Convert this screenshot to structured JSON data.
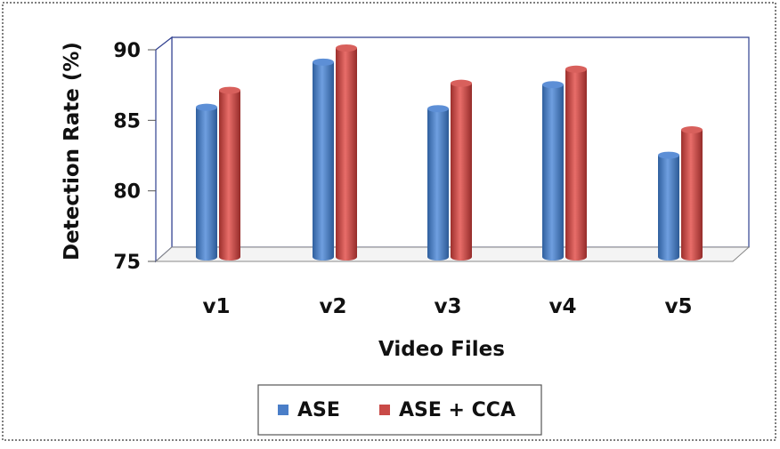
{
  "chart_data": {
    "type": "bar",
    "title": "",
    "xlabel": "Video Files",
    "ylabel": "Detection Rate (%)",
    "ylim": [
      75,
      90
    ],
    "yticks": [
      75,
      80,
      85,
      90
    ],
    "grid": false,
    "legend_position": "bottom",
    "categories": [
      "v1",
      "v2",
      "v3",
      "v4",
      "v5"
    ],
    "series": [
      {
        "name": "ASE",
        "color": "#4a7ec8",
        "values": [
          85.8,
          89.0,
          85.7,
          87.4,
          82.4
        ]
      },
      {
        "name": "ASE + CCA",
        "color": "#c94a47",
        "values": [
          87.0,
          90.0,
          87.5,
          88.5,
          84.2
        ]
      }
    ]
  }
}
